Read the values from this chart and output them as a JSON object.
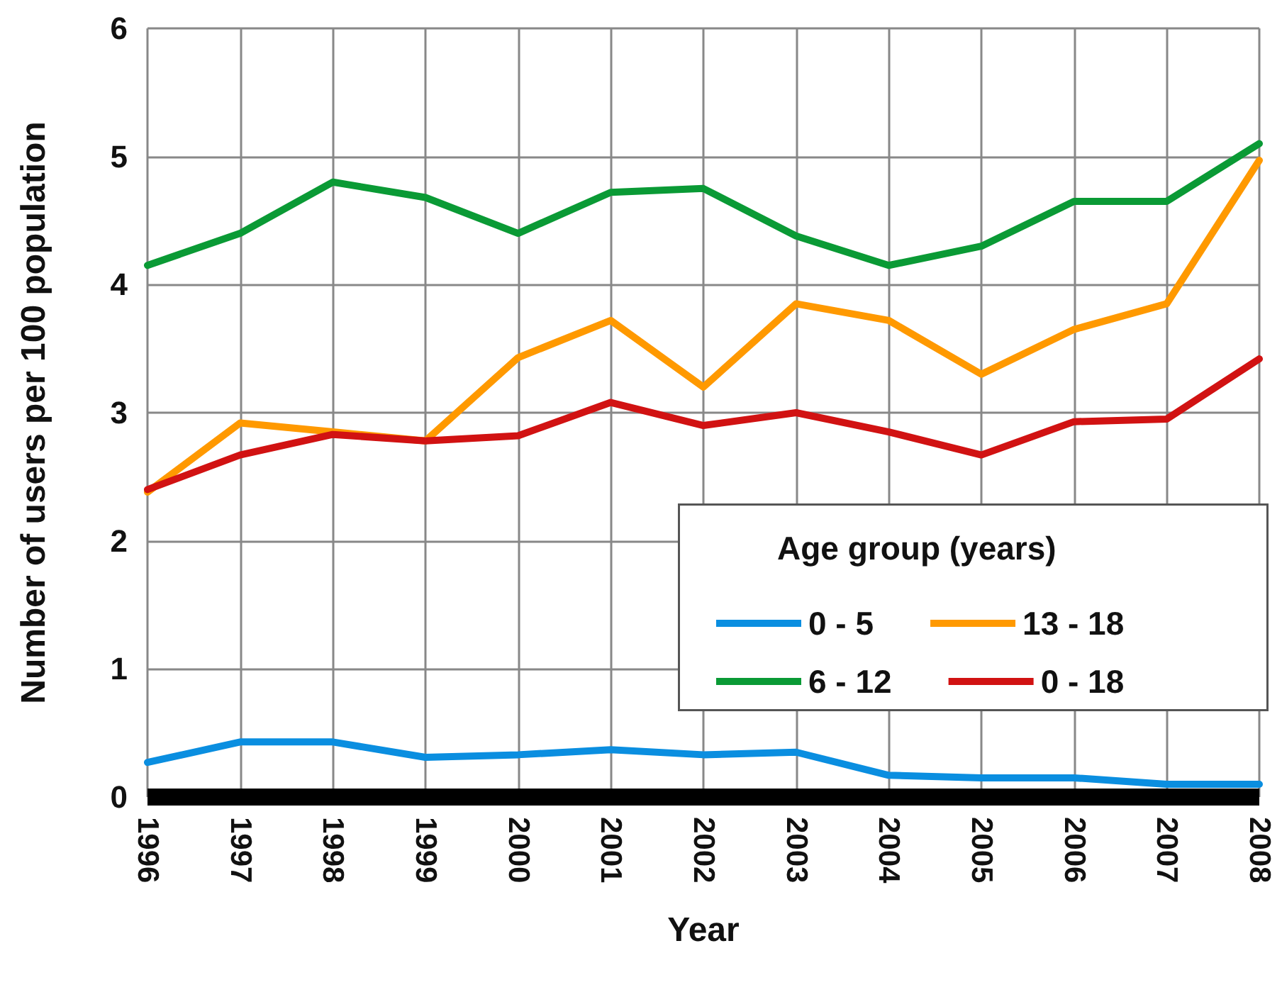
{
  "chart_data": {
    "type": "line",
    "xlabel": "Year",
    "ylabel": "Number of users per 100 population",
    "legend_title": "Age group (years)",
    "x": [
      1996,
      1997,
      1998,
      1999,
      2000,
      2001,
      2002,
      2003,
      2004,
      2005,
      2006,
      2007,
      2008
    ],
    "series": [
      {
        "name": "0 - 5",
        "color": "#0a8ee0",
        "values": [
          0.27,
          0.43,
          0.43,
          0.31,
          0.33,
          0.37,
          0.33,
          0.35,
          0.17,
          0.15,
          0.15,
          0.1,
          0.1
        ]
      },
      {
        "name": "13 - 18",
        "color": "#ff9900",
        "values": [
          2.38,
          2.92,
          2.85,
          2.78,
          3.43,
          3.72,
          3.2,
          3.85,
          3.72,
          3.3,
          3.65,
          3.85,
          4.97
        ]
      },
      {
        "name": "6 - 12",
        "color": "#0a9a35",
        "values": [
          4.15,
          4.4,
          4.8,
          4.68,
          4.4,
          4.72,
          4.75,
          4.38,
          4.15,
          4.3,
          4.65,
          4.65,
          5.1
        ]
      },
      {
        "name": "0 - 18",
        "color": "#d11212",
        "values": [
          2.4,
          2.67,
          2.83,
          2.78,
          2.82,
          3.08,
          2.9,
          3.0,
          2.85,
          2.67,
          2.93,
          2.95,
          3.42
        ]
      }
    ],
    "xlim": [
      1996,
      2008
    ],
    "xticks": [
      1996,
      1997,
      1998,
      1999,
      2000,
      2001,
      2002,
      2003,
      2004,
      2005,
      2006,
      2007,
      2008
    ],
    "ylim": [
      0,
      6
    ],
    "yticks": [
      0,
      1,
      2,
      3,
      4,
      5,
      6
    ],
    "grid": true,
    "legend": "bottom right",
    "marker": "none",
    "line_style": "solid"
  }
}
